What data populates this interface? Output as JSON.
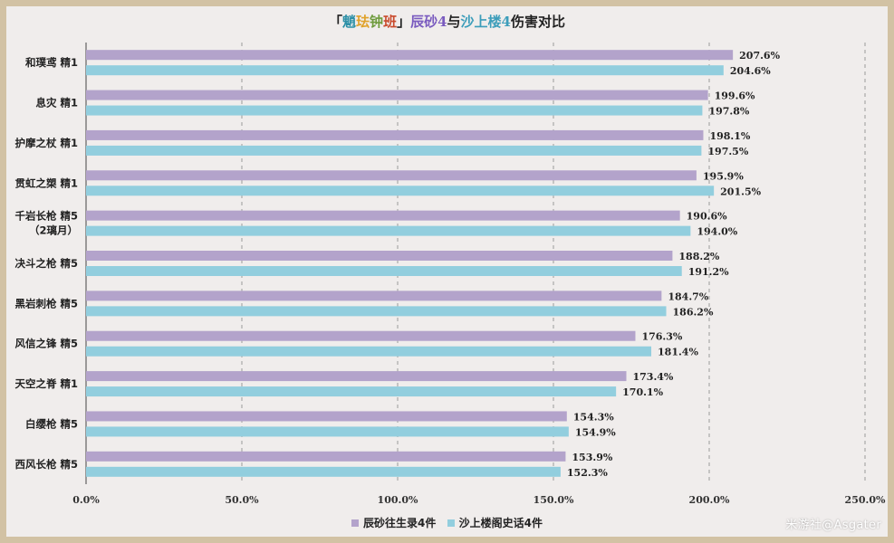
{
  "title_parts": {
    "open": "「",
    "char1": "魈",
    "char2": "珐",
    "char3": "钟",
    "char4": "班",
    "close": "」",
    "set1": "辰砂4",
    "mid": "与",
    "set2": "沙上楼4",
    "tail": "伤害对比"
  },
  "colors": {
    "series1": "#b3a3cb",
    "series2": "#92cede",
    "title_c1": "#2b8fa6",
    "title_c2": "#e0a22a",
    "title_c3": "#6e9b3c",
    "title_c4": "#c94a2c",
    "title_set1": "#7a5bbf",
    "title_set2": "#3c9dba"
  },
  "watermark": "米游社@Asgater",
  "chart_data": {
    "type": "bar",
    "orientation": "horizontal",
    "title": "「魈珐钟班」辰砂4与沙上楼4伤害对比",
    "categories": [
      [
        "和璞鸢 精1"
      ],
      [
        "息灾 精1"
      ],
      [
        "护摩之杖 精1"
      ],
      [
        "贯虹之槊 精1"
      ],
      [
        "千岩长枪 精5",
        "（2璃月）"
      ],
      [
        "决斗之枪 精5"
      ],
      [
        "黑岩刺枪 精5"
      ],
      [
        "风信之锋 精5"
      ],
      [
        "天空之脊 精1"
      ],
      [
        "白缨枪 精5"
      ],
      [
        "西风长枪 精5"
      ]
    ],
    "series": [
      {
        "name": "辰砂往生录4件",
        "values": [
          207.6,
          199.6,
          198.1,
          195.9,
          190.6,
          188.2,
          184.7,
          176.3,
          173.4,
          154.3,
          153.9
        ]
      },
      {
        "name": "沙上楼阁史话4件",
        "values": [
          204.6,
          197.8,
          197.5,
          201.5,
          194.0,
          191.2,
          186.2,
          181.4,
          170.1,
          154.9,
          152.3
        ]
      }
    ],
    "xlim": [
      0,
      250
    ],
    "xticks": [
      0,
      50,
      100,
      150,
      200,
      250
    ],
    "value_format": "percent",
    "grid": "vertical-dashed",
    "legend_position": "bottom"
  }
}
